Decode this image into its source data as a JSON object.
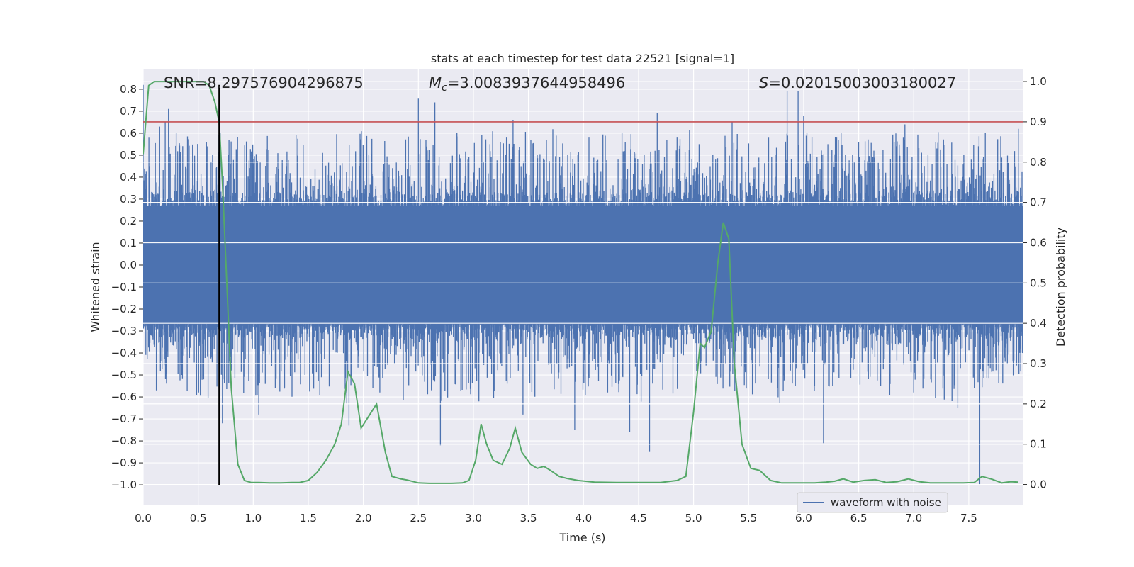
{
  "chart_data": {
    "type": "line",
    "title": "stats at each timestep for test data 22521 [signal=1]",
    "xlabel": "Time (s)",
    "ylabel_left": "Whitened strain",
    "ylabel_right": "Detection probability",
    "xlim": [
      0.0,
      7.99
    ],
    "ylim_left": [
      -1.09,
      0.89
    ],
    "ylim_right": [
      -0.05,
      1.03
    ],
    "x_ticks": [
      "0.0",
      "0.5",
      "1.0",
      "1.5",
      "2.0",
      "2.5",
      "3.0",
      "3.5",
      "4.0",
      "4.5",
      "5.0",
      "5.5",
      "6.0",
      "6.5",
      "7.0",
      "7.5"
    ],
    "x_tick_values": [
      0.0,
      0.5,
      1.0,
      1.5,
      2.0,
      2.5,
      3.0,
      3.5,
      4.0,
      4.5,
      5.0,
      5.5,
      6.0,
      6.5,
      7.0,
      7.5
    ],
    "y_left_ticks": [
      "0.8",
      "0.7",
      "0.6",
      "0.5",
      "0.4",
      "0.3",
      "0.2",
      "0.1",
      "0.0",
      "−0.1",
      "−0.2",
      "−0.3",
      "−0.4",
      "−0.5",
      "−0.6",
      "−0.7",
      "−0.8",
      "−0.9",
      "−1.0"
    ],
    "y_left_tick_values": [
      0.8,
      0.7,
      0.6,
      0.5,
      0.4,
      0.3,
      0.2,
      0.1,
      0.0,
      -0.1,
      -0.2,
      -0.3,
      -0.4,
      -0.5,
      -0.6,
      -0.7,
      -0.8,
      -0.9,
      -1.0
    ],
    "y_right_ticks": [
      "1.0",
      "0.9",
      "0.8",
      "0.7",
      "0.6",
      "0.5",
      "0.4",
      "0.3",
      "0.2",
      "0.1",
      "0.0"
    ],
    "y_right_tick_values": [
      1.0,
      0.9,
      0.8,
      0.7,
      0.6,
      0.5,
      0.4,
      0.3,
      0.2,
      0.1,
      0.0
    ],
    "grid": true,
    "annotations": {
      "snr": "SNR=8.297576904296875",
      "mc_symbol": "M",
      "mc_sub": "c",
      "mc_value": "=3.0083937644958496",
      "s_symbol": "S",
      "s_value": "=0.02015003003180027"
    },
    "threshold_probability": 0.9,
    "detection_time": 0.69,
    "legend": {
      "label": "waveform with noise",
      "location": "lower-right"
    },
    "colors": {
      "waveform": "#4c72b0",
      "probability": "#55a868",
      "threshold": "#c44e52",
      "marker": "#000000",
      "axes_bg": "#eaeaf2",
      "grid": "#ffffff"
    },
    "waveform": {
      "name": "waveform with noise",
      "duration_s": 7.99,
      "core_amplitude": 0.27,
      "spikes": [
        [
          0.0,
          0.82
        ],
        [
          0.06,
          0.45
        ],
        [
          0.12,
          -0.57
        ],
        [
          0.15,
          0.63
        ],
        [
          0.2,
          0.65
        ],
        [
          0.23,
          0.71
        ],
        [
          0.3,
          0.6
        ],
        [
          0.35,
          -0.5
        ],
        [
          0.45,
          0.53
        ],
        [
          0.55,
          -0.52
        ],
        [
          0.63,
          0.5
        ],
        [
          0.7,
          0.6
        ],
        [
          0.72,
          -0.72
        ],
        [
          0.78,
          0.57
        ],
        [
          0.8,
          -0.48
        ],
        [
          1.05,
          -0.68
        ],
        [
          1.2,
          -0.56
        ],
        [
          1.3,
          0.45
        ],
        [
          1.47,
          -0.5
        ],
        [
          1.63,
          0.51
        ],
        [
          1.85,
          -0.63
        ],
        [
          1.87,
          -0.73
        ],
        [
          1.9,
          0.45
        ],
        [
          2.05,
          0.5
        ],
        [
          2.15,
          -0.58
        ],
        [
          2.3,
          0.47
        ],
        [
          2.5,
          0.76
        ],
        [
          2.53,
          -0.42
        ],
        [
          2.65,
          0.74
        ],
        [
          2.7,
          -0.82
        ],
        [
          2.85,
          0.6
        ],
        [
          3.05,
          -0.62
        ],
        [
          3.15,
          0.55
        ],
        [
          3.3,
          0.58
        ],
        [
          3.36,
          0.66
        ],
        [
          3.45,
          -0.68
        ],
        [
          3.58,
          0.5
        ],
        [
          3.8,
          0.45
        ],
        [
          3.92,
          -0.75
        ],
        [
          4.05,
          0.58
        ],
        [
          4.22,
          -0.58
        ],
        [
          4.35,
          0.6
        ],
        [
          4.42,
          -0.76
        ],
        [
          4.6,
          -0.85
        ],
        [
          4.67,
          0.69
        ],
        [
          4.85,
          0.58
        ],
        [
          5.05,
          0.55
        ],
        [
          5.2,
          0.48
        ],
        [
          5.35,
          0.65
        ],
        [
          5.5,
          0.55
        ],
        [
          5.75,
          0.5
        ],
        [
          5.85,
          0.79
        ],
        [
          5.88,
          -0.48
        ],
        [
          5.95,
          0.79
        ],
        [
          6.0,
          0.68
        ],
        [
          6.1,
          -0.55
        ],
        [
          6.18,
          -0.81
        ],
        [
          6.3,
          0.58
        ],
        [
          6.5,
          0.48
        ],
        [
          6.7,
          -0.55
        ],
        [
          6.92,
          0.64
        ],
        [
          7.0,
          -0.58
        ],
        [
          7.2,
          0.55
        ],
        [
          7.4,
          -0.65
        ],
        [
          7.6,
          -1.0
        ],
        [
          7.65,
          0.6
        ],
        [
          7.85,
          -0.45
        ],
        [
          7.95,
          0.62
        ]
      ]
    },
    "probability": {
      "name": "detection probability",
      "x": [
        0.0,
        0.05,
        0.1,
        0.15,
        0.2,
        0.25,
        0.3,
        0.35,
        0.4,
        0.45,
        0.5,
        0.55,
        0.6,
        0.65,
        0.69,
        0.72,
        0.76,
        0.8,
        0.86,
        0.92,
        0.98,
        1.05,
        1.15,
        1.25,
        1.35,
        1.42,
        1.5,
        1.58,
        1.66,
        1.74,
        1.8,
        1.86,
        1.92,
        1.98,
        2.05,
        2.12,
        2.2,
        2.26,
        2.34,
        2.4,
        2.5,
        2.6,
        2.7,
        2.8,
        2.9,
        2.96,
        3.02,
        3.07,
        3.12,
        3.18,
        3.26,
        3.33,
        3.38,
        3.44,
        3.52,
        3.58,
        3.64,
        3.7,
        3.78,
        3.85,
        3.95,
        4.1,
        4.3,
        4.5,
        4.7,
        4.85,
        4.93,
        5.0,
        5.06,
        5.1,
        5.16,
        5.22,
        5.27,
        5.32,
        5.37,
        5.44,
        5.52,
        5.6,
        5.7,
        5.8,
        5.95,
        6.1,
        6.2,
        6.28,
        6.36,
        6.45,
        6.55,
        6.65,
        6.75,
        6.85,
        6.95,
        7.05,
        7.15,
        7.3,
        7.45,
        7.55,
        7.62,
        7.7,
        7.8,
        7.88,
        7.95
      ],
      "values": [
        0.82,
        0.99,
        1.0,
        1.0,
        1.0,
        1.0,
        1.0,
        1.0,
        1.0,
        1.0,
        1.0,
        1.0,
        0.99,
        0.95,
        0.9,
        0.75,
        0.5,
        0.24,
        0.05,
        0.01,
        0.005,
        0.005,
        0.004,
        0.004,
        0.005,
        0.005,
        0.01,
        0.03,
        0.06,
        0.1,
        0.15,
        0.28,
        0.25,
        0.14,
        0.17,
        0.2,
        0.08,
        0.02,
        0.014,
        0.011,
        0.004,
        0.003,
        0.003,
        0.003,
        0.004,
        0.01,
        0.06,
        0.15,
        0.1,
        0.06,
        0.05,
        0.09,
        0.14,
        0.08,
        0.05,
        0.04,
        0.045,
        0.035,
        0.02,
        0.015,
        0.01,
        0.006,
        0.005,
        0.005,
        0.005,
        0.01,
        0.02,
        0.18,
        0.35,
        0.34,
        0.38,
        0.55,
        0.65,
        0.61,
        0.3,
        0.1,
        0.04,
        0.035,
        0.01,
        0.004,
        0.004,
        0.004,
        0.006,
        0.008,
        0.014,
        0.006,
        0.01,
        0.012,
        0.005,
        0.007,
        0.014,
        0.007,
        0.004,
        0.004,
        0.004,
        0.005,
        0.02,
        0.014,
        0.004,
        0.007,
        0.006
      ]
    }
  }
}
